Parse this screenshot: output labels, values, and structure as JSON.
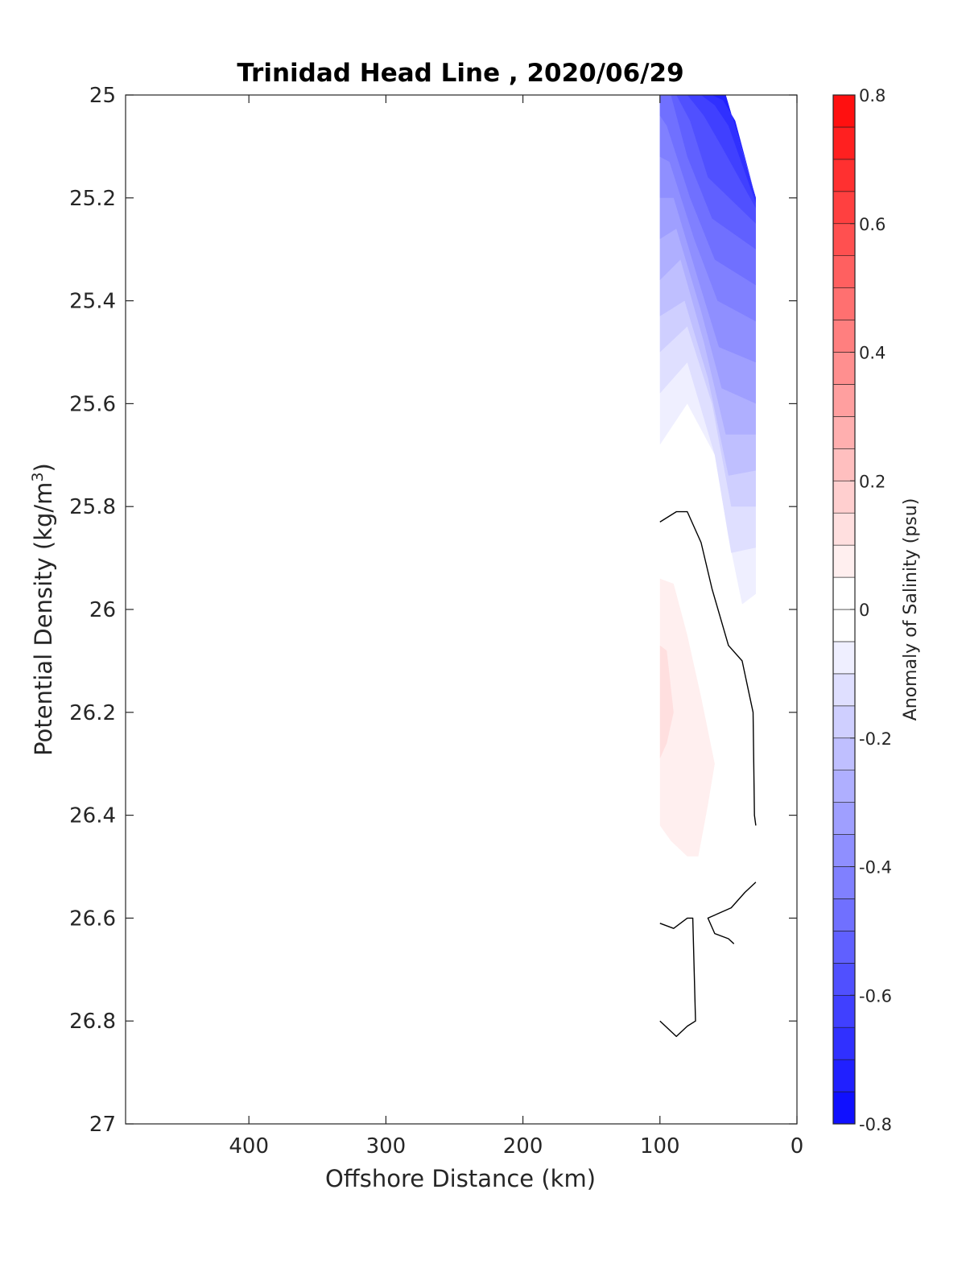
{
  "chart_data": {
    "type": "contour",
    "title": "Trinidad Head Line , 2020/06/29",
    "xlabel": "Offshore Distance (km)",
    "ylabel_prefix": "Potential Density (kg/m",
    "ylabel_sup": "3",
    "ylabel_suffix": ")",
    "x_reversed": true,
    "y_reversed": true,
    "xlim": [
      0,
      490
    ],
    "ylim": [
      25,
      27
    ],
    "xticks": [
      400,
      300,
      200,
      100,
      0
    ],
    "yticks": [
      25,
      25.2,
      25.4,
      25.6,
      25.8,
      26,
      26.2,
      26.4,
      26.6,
      26.8,
      27
    ],
    "colorbar": {
      "label": "Anomaly of Salinity (psu)",
      "range": [
        -0.8,
        0.8
      ],
      "ticks": [
        0.8,
        0.6,
        0.4,
        0.2,
        0,
        -0.2,
        -0.4,
        -0.6,
        -0.8
      ],
      "step": 0.05,
      "neg_color": "#0000ff",
      "pos_color": "#ff0000",
      "mid_color": "#ffffff"
    },
    "filled_regions": [
      {
        "value": -0.05,
        "points": [
          [
            100,
            25
          ],
          [
            52,
            25
          ],
          [
            30,
            25.2
          ],
          [
            30,
            25.97
          ],
          [
            40,
            25.99
          ],
          [
            50,
            25.86
          ],
          [
            60,
            25.7
          ],
          [
            80,
            25.6
          ],
          [
            100,
            25.68
          ]
        ]
      },
      {
        "value": -0.1,
        "points": [
          [
            100,
            25
          ],
          [
            52,
            25
          ],
          [
            30,
            25.2
          ],
          [
            30,
            25.88
          ],
          [
            48,
            25.89
          ],
          [
            60,
            25.7
          ],
          [
            80,
            25.52
          ],
          [
            100,
            25.58
          ]
        ]
      },
      {
        "value": -0.15,
        "points": [
          [
            100,
            25
          ],
          [
            52,
            25
          ],
          [
            30,
            25.2
          ],
          [
            30,
            25.8
          ],
          [
            48,
            25.8
          ],
          [
            62,
            25.6
          ],
          [
            80,
            25.45
          ],
          [
            100,
            25.5
          ]
        ]
      },
      {
        "value": -0.2,
        "points": [
          [
            100,
            25
          ],
          [
            52,
            25
          ],
          [
            30,
            25.2
          ],
          [
            30,
            25.73
          ],
          [
            50,
            25.74
          ],
          [
            65,
            25.55
          ],
          [
            82,
            25.4
          ],
          [
            100,
            25.43
          ]
        ]
      },
      {
        "value": -0.25,
        "points": [
          [
            100,
            25
          ],
          [
            52,
            25
          ],
          [
            30,
            25.2
          ],
          [
            30,
            25.66
          ],
          [
            52,
            25.66
          ],
          [
            68,
            25.48
          ],
          [
            85,
            25.32
          ],
          [
            100,
            25.36
          ]
        ]
      },
      {
        "value": -0.3,
        "points": [
          [
            100,
            25
          ],
          [
            52,
            25
          ],
          [
            30,
            25.2
          ],
          [
            30,
            25.6
          ],
          [
            55,
            25.57
          ],
          [
            70,
            25.42
          ],
          [
            88,
            25.26
          ],
          [
            100,
            25.28
          ]
        ]
      },
      {
        "value": -0.35,
        "points": [
          [
            100,
            25
          ],
          [
            52,
            25
          ],
          [
            30,
            25.2
          ],
          [
            30,
            25.52
          ],
          [
            57,
            25.49
          ],
          [
            72,
            25.36
          ],
          [
            90,
            25.2
          ],
          [
            100,
            25.2
          ]
        ]
      },
      {
        "value": -0.4,
        "points": [
          [
            100,
            25
          ],
          [
            52,
            25
          ],
          [
            30,
            25.2
          ],
          [
            30,
            25.44
          ],
          [
            58,
            25.4
          ],
          [
            75,
            25.28
          ],
          [
            93,
            25.13
          ],
          [
            100,
            25.12
          ]
        ]
      },
      {
        "value": -0.45,
        "points": [
          [
            100,
            25
          ],
          [
            52,
            25
          ],
          [
            30,
            25.2
          ],
          [
            30,
            25.37
          ],
          [
            60,
            25.32
          ],
          [
            78,
            25.2
          ],
          [
            95,
            25.06
          ],
          [
            100,
            25.04
          ]
        ]
      },
      {
        "value": -0.5,
        "points": [
          [
            98,
            25
          ],
          [
            52,
            25
          ],
          [
            30,
            25.2
          ],
          [
            30,
            25.3
          ],
          [
            62,
            25.24
          ],
          [
            80,
            25.12
          ],
          [
            92,
            25
          ]
        ]
      },
      {
        "value": -0.55,
        "points": [
          [
            88,
            25
          ],
          [
            52,
            25
          ],
          [
            30,
            25.2
          ],
          [
            30,
            25.25
          ],
          [
            65,
            25.16
          ],
          [
            78,
            25.05
          ]
        ]
      },
      {
        "value": -0.6,
        "points": [
          [
            80,
            25
          ],
          [
            52,
            25
          ],
          [
            30,
            25.2
          ],
          [
            30,
            25.22
          ],
          [
            55,
            25.1
          ],
          [
            68,
            25.04
          ]
        ]
      },
      {
        "value": -0.65,
        "points": [
          [
            70,
            25
          ],
          [
            52,
            25
          ],
          [
            30,
            25.2
          ],
          [
            30,
            25.21
          ],
          [
            50,
            25.06
          ],
          [
            60,
            25.02
          ]
        ]
      },
      {
        "value": -0.7,
        "points": [
          [
            62,
            25
          ],
          [
            52,
            25
          ],
          [
            32,
            25.18
          ],
          [
            45,
            25.05
          ],
          [
            54,
            25.01
          ]
        ]
      },
      {
        "value": 0.05,
        "points": [
          [
            100,
            25.94
          ],
          [
            90,
            25.95
          ],
          [
            80,
            26.05
          ],
          [
            70,
            26.17
          ],
          [
            60,
            26.3
          ],
          [
            65,
            26.38
          ],
          [
            72,
            26.48
          ],
          [
            80,
            26.48
          ],
          [
            92,
            26.45
          ],
          [
            100,
            26.42
          ]
        ]
      },
      {
        "value": 0.1,
        "points": [
          [
            100,
            26.07
          ],
          [
            95,
            26.08
          ],
          [
            90,
            26.2
          ],
          [
            95,
            26.26
          ],
          [
            100,
            26.29
          ]
        ]
      }
    ],
    "zero_contours": [
      [
        [
          100,
          25.83
        ],
        [
          88,
          25.81
        ],
        [
          80,
          25.81
        ],
        [
          70,
          25.87
        ],
        [
          62,
          25.96
        ],
        [
          50,
          26.07
        ],
        [
          40,
          26.1
        ],
        [
          32,
          26.2
        ],
        [
          31,
          26.4
        ],
        [
          30,
          26.42
        ]
      ],
      [
        [
          30,
          26.53
        ],
        [
          38,
          26.55
        ],
        [
          48,
          26.58
        ],
        [
          65,
          26.6
        ],
        [
          60,
          26.63
        ],
        [
          50,
          26.64
        ],
        [
          46,
          26.65
        ]
      ],
      [
        [
          100,
          26.61
        ],
        [
          90,
          26.62
        ],
        [
          80,
          26.6
        ],
        [
          76,
          26.6
        ],
        [
          75,
          26.7
        ],
        [
          74,
          26.8
        ],
        [
          80,
          26.81
        ],
        [
          88,
          26.83
        ],
        [
          100,
          26.8
        ]
      ]
    ]
  }
}
